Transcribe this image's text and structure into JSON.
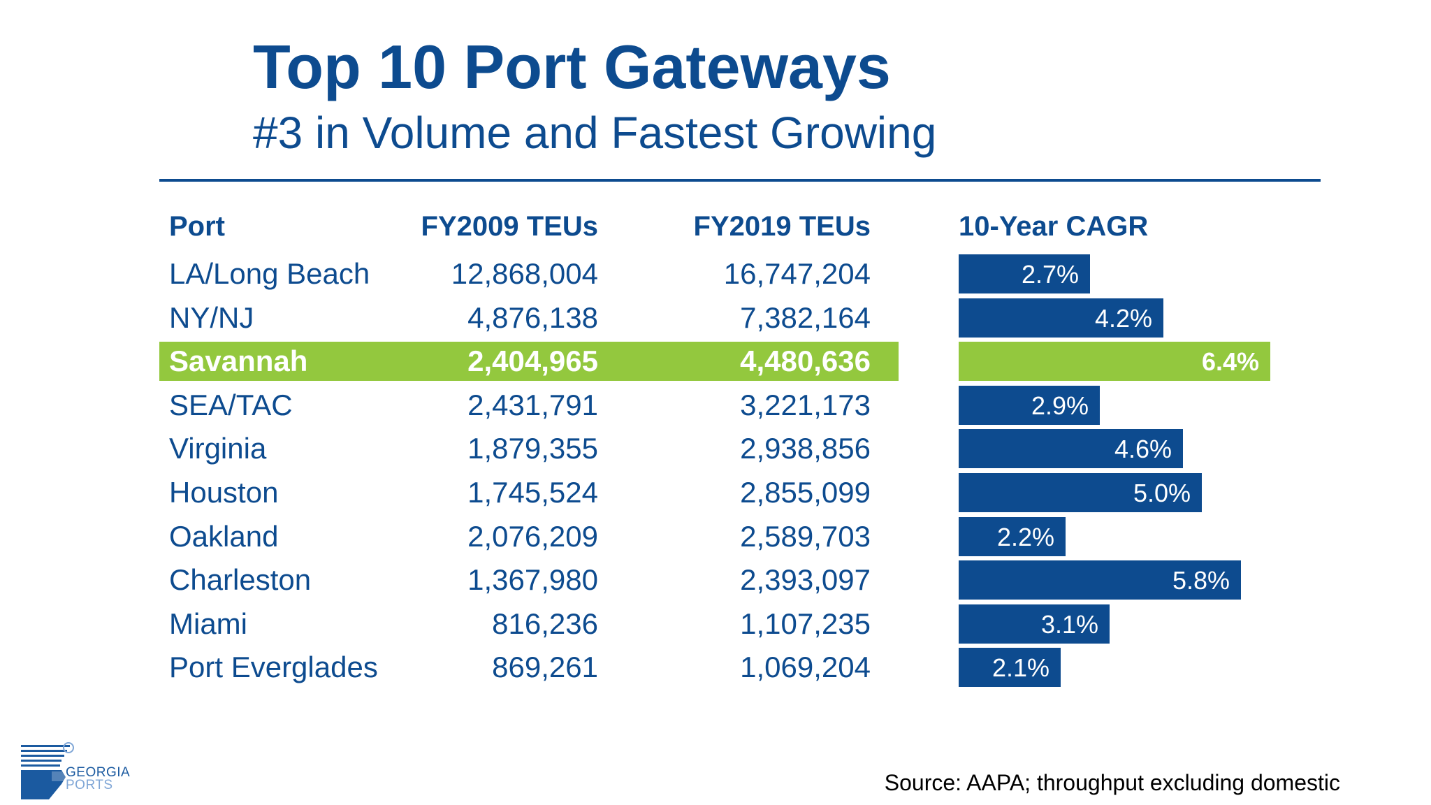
{
  "title": "Top 10 Port Gateways",
  "subtitle": "#3 in Volume and Fastest Growing",
  "columns": {
    "port": "Port",
    "fy2009": "FY2009 TEUs",
    "fy2019": "FY2019 TEUs",
    "cagr": "10-Year CAGR"
  },
  "colors": {
    "primary": "#0d4b8f",
    "highlight": "#93c83e"
  },
  "chart_data": {
    "type": "bar",
    "orientation": "horizontal",
    "highlight": "Savannah",
    "categories": [
      "LA/Long Beach",
      "NY/NJ",
      "Savannah",
      "SEA/TAC",
      "Virginia",
      "Houston",
      "Oakland",
      "Charleston",
      "Miami",
      "Port Everglades"
    ],
    "values": [
      2.7,
      4.2,
      6.4,
      2.9,
      4.6,
      5.0,
      2.2,
      5.8,
      3.1,
      2.1
    ],
    "value_labels": [
      "2.7%",
      "4.2%",
      "6.4%",
      "2.9%",
      "4.6%",
      "5.0%",
      "2.2%",
      "5.8%",
      "3.1%",
      "2.1%"
    ],
    "title": "10-Year CAGR",
    "xlim": [
      0,
      6.4
    ],
    "grid": false,
    "table": {
      "fy2009_teus": [
        "12,868,004",
        "4,876,138",
        "2,404,965",
        "2,431,791",
        "1,879,355",
        "1,745,524",
        "2,076,209",
        "1,367,980",
        "816,236",
        "869,261"
      ],
      "fy2019_teus": [
        "16,747,204",
        "7,382,164",
        "4,480,636",
        "3,221,173",
        "2,938,856",
        "2,855,099",
        "2,589,703",
        "2,393,097",
        "1,107,235",
        "1,069,204"
      ]
    }
  },
  "logo": {
    "line1": "GEORGIA",
    "line2": "PORTS"
  },
  "source": "Source: AAPA; throughput excluding domestic"
}
